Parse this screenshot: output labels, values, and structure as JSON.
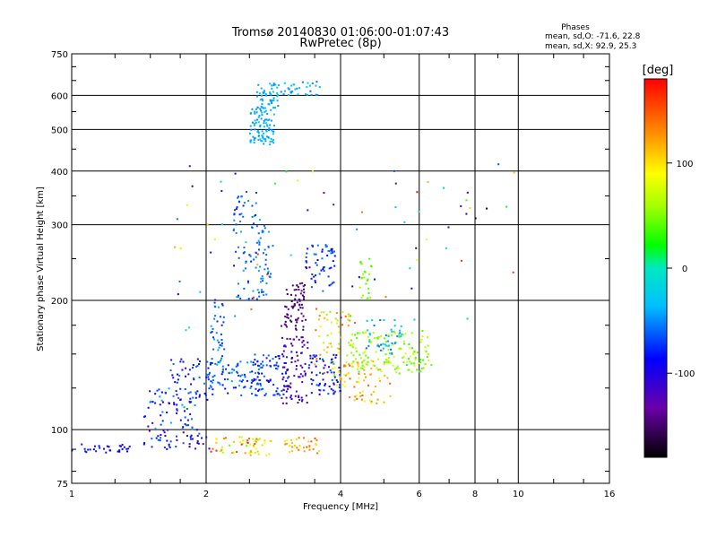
{
  "chart_data": {
    "type": "scatter",
    "title": "Tromsø 20140830 01:06:00-01:07:43",
    "subtitle": "RwPretec (8p)",
    "xlabel": "Frequency [MHz]",
    "ylabel": "Stationary phase Virtual Height [km]",
    "x_scale": "log",
    "y_scale": "log",
    "xlim": [
      1,
      16
    ],
    "ylim": [
      75,
      750
    ],
    "x_ticks": [
      1,
      2,
      4,
      6,
      8,
      10,
      16
    ],
    "y_ticks": [
      75,
      100,
      200,
      300,
      400,
      500,
      600,
      750
    ],
    "grid": true,
    "stats": {
      "heading": "Phases",
      "line_o": "mean, sd,O: -71.6, 22.8",
      "line_x": "mean, sd,X:  92.9, 25.3"
    },
    "colorbar": {
      "label": "[deg]",
      "range": [
        -180,
        180
      ],
      "ticks": [
        100,
        0,
        -100
      ]
    },
    "clusters": [
      {
        "x": [
          1.0,
          1.35
        ],
        "y": [
          88,
          93
        ],
        "phase": [
          -95,
          -75
        ],
        "n": 30
      },
      {
        "x": [
          1.45,
          2.05
        ],
        "y": [
          90,
          100
        ],
        "phase": [
          -130,
          -60
        ],
        "n": 45
      },
      {
        "x": [
          2.05,
          2.6
        ],
        "y": [
          88,
          97
        ],
        "phase": [
          40,
          170
        ],
        "n": 40
      },
      {
        "x": [
          2.5,
          2.8
        ],
        "y": [
          87,
          96
        ],
        "phase": [
          60,
          130
        ],
        "n": 20
      },
      {
        "x": [
          3.0,
          3.25
        ],
        "y": [
          88,
          96
        ],
        "phase": [
          80,
          140
        ],
        "n": 18
      },
      {
        "x": [
          3.3,
          3.6
        ],
        "y": [
          88,
          96
        ],
        "phase": [
          100,
          170
        ],
        "n": 16
      },
      {
        "x": [
          1.45,
          1.9
        ],
        "y": [
          100,
          125
        ],
        "phase": [
          -120,
          -40
        ],
        "n": 60
      },
      {
        "x": [
          1.65,
          2.05
        ],
        "y": [
          115,
          150
        ],
        "phase": [
          -110,
          -50
        ],
        "n": 50
      },
      {
        "x": [
          2.0,
          2.7
        ],
        "y": [
          120,
          145
        ],
        "phase": [
          -90,
          -40
        ],
        "n": 90
      },
      {
        "x": [
          2.05,
          2.2
        ],
        "y": [
          140,
          200
        ],
        "phase": [
          -80,
          -40
        ],
        "n": 40
      },
      {
        "x": [
          2.3,
          2.65
        ],
        "y": [
          200,
          360
        ],
        "phase": [
          -80,
          -40
        ],
        "n": 70
      },
      {
        "x": [
          2.6,
          2.8
        ],
        "y": [
          200,
          300
        ],
        "phase": [
          -70,
          -40
        ],
        "n": 40
      },
      {
        "x": [
          2.55,
          3.05
        ],
        "y": [
          120,
          150
        ],
        "phase": [
          -100,
          -50
        ],
        "n": 70
      },
      {
        "x": [
          3.0,
          3.35
        ],
        "y": [
          170,
          220
        ],
        "phase": [
          -160,
          -130
        ],
        "n": 70
      },
      {
        "x": [
          2.95,
          3.4
        ],
        "y": [
          115,
          165
        ],
        "phase": [
          -150,
          -100
        ],
        "n": 80
      },
      {
        "x": [
          3.4,
          4.0
        ],
        "y": [
          120,
          150
        ],
        "phase": [
          -110,
          -60
        ],
        "n": 70
      },
      {
        "x": [
          3.3,
          3.9
        ],
        "y": [
          210,
          270
        ],
        "phase": [
          -90,
          -50
        ],
        "n": 55
      },
      {
        "x": [
          3.5,
          4.2
        ],
        "y": [
          130,
          190
        ],
        "phase": [
          50,
          150
        ],
        "n": 60
      },
      {
        "x": [
          3.9,
          5.2
        ],
        "y": [
          115,
          145
        ],
        "phase": [
          80,
          150
        ],
        "n": 60
      },
      {
        "x": [
          4.2,
          6.4
        ],
        "y": [
          135,
          170
        ],
        "phase": [
          30,
          80
        ],
        "n": 150
      },
      {
        "x": [
          4.5,
          5.5
        ],
        "y": [
          150,
          180
        ],
        "phase": [
          -60,
          -20
        ],
        "n": 40
      },
      {
        "x": [
          4.4,
          4.7
        ],
        "y": [
          200,
          250
        ],
        "phase": [
          30,
          60
        ],
        "n": 25
      },
      {
        "x": [
          2.5,
          2.85
        ],
        "y": [
          460,
          560
        ],
        "phase": [
          -50,
          -30
        ],
        "n": 90
      },
      {
        "x": [
          2.6,
          2.9
        ],
        "y": [
          560,
          640
        ],
        "phase": [
          -50,
          -30
        ],
        "n": 50
      },
      {
        "x": [
          2.9,
          3.6
        ],
        "y": [
          600,
          650
        ],
        "phase": [
          -60,
          -20
        ],
        "n": 35
      },
      {
        "x": [
          1.7,
          9.8
        ],
        "y": [
          170,
          420
        ],
        "phase": [
          -180,
          180
        ],
        "n": 80
      }
    ]
  }
}
